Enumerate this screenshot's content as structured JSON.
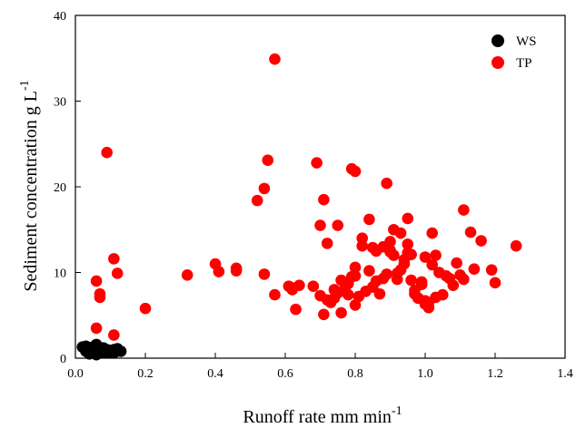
{
  "chart_data": {
    "type": "scatter",
    "xlabel": "Runoff rate mm min",
    "xlabel_superscript": "-1",
    "ylabel": "Sediment concentration g L",
    "ylabel_superscript": "-1",
    "xlim": [
      0.0,
      1.4
    ],
    "ylim": [
      0,
      40
    ],
    "x_ticks": [
      "0.0",
      "0.2",
      "0.4",
      "0.6",
      "0.8",
      "1.0",
      "1.2",
      "1.4"
    ],
    "y_ticks": [
      "0",
      "10",
      "20",
      "30",
      "40"
    ],
    "grid": false,
    "legend_position": "top-right",
    "series": [
      {
        "name": "WS",
        "color": "#000000",
        "x": [
          0.02,
          0.03,
          0.04,
          0.05,
          0.06,
          0.06,
          0.07,
          0.08,
          0.09,
          0.1,
          0.11,
          0.12,
          0.13,
          0.04,
          0.05,
          0.07,
          0.09,
          0.11,
          0.03,
          0.08,
          0.1,
          0.06,
          0.12
        ],
        "y": [
          1.3,
          0.8,
          1.1,
          0.9,
          1.6,
          1.0,
          1.2,
          0.7,
          1.0,
          0.9,
          0.6,
          1.1,
          0.8,
          0.5,
          1.3,
          0.9,
          0.6,
          1.0,
          1.4,
          1.2,
          0.7,
          0.4,
          1.0
        ]
      },
      {
        "name": "TP",
        "color": "#ff0000",
        "x": [
          0.09,
          0.57,
          0.55,
          0.69,
          0.79,
          0.8,
          0.89,
          0.71,
          0.54,
          0.52,
          1.11,
          0.06,
          0.07,
          0.07,
          0.11,
          0.12,
          0.11,
          0.06,
          0.2,
          0.32,
          0.4,
          0.41,
          0.46,
          0.46,
          0.54,
          0.57,
          0.61,
          0.62,
          0.62,
          0.64,
          0.63,
          0.7,
          0.71,
          0.72,
          0.73,
          0.74,
          0.75,
          0.76,
          0.77,
          0.78,
          0.79,
          0.8,
          0.8,
          0.81,
          0.82,
          0.83,
          0.84,
          0.85,
          0.85,
          0.86,
          0.87,
          0.88,
          0.89,
          0.9,
          0.91,
          0.92,
          0.93,
          0.94,
          0.95,
          0.95,
          0.96,
          0.97,
          0.98,
          0.99,
          1.0,
          1.0,
          1.01,
          1.02,
          1.03,
          1.04,
          1.05,
          1.07,
          1.08,
          1.09,
          1.1,
          1.11,
          1.13,
          1.14,
          1.16,
          1.19,
          1.2,
          1.26,
          0.68,
          0.7,
          0.75,
          0.72,
          0.74,
          0.8,
          0.82,
          0.86,
          0.88,
          0.9,
          0.92,
          0.94,
          0.96,
          0.98,
          1.0,
          1.01,
          1.02,
          0.93,
          0.97,
          0.99,
          1.03,
          0.84,
          0.78,
          0.76,
          0.9,
          0.95,
          1.06,
          0.91
        ],
        "y": [
          24.0,
          34.9,
          23.1,
          22.8,
          22.1,
          21.8,
          20.4,
          18.5,
          19.8,
          18.4,
          17.3,
          9.0,
          7.5,
          7.1,
          11.6,
          9.9,
          2.7,
          3.5,
          5.8,
          9.7,
          11.0,
          10.1,
          10.5,
          10.2,
          9.8,
          7.4,
          8.4,
          8.0,
          8.2,
          8.5,
          5.7,
          7.3,
          5.1,
          13.4,
          6.5,
          7.0,
          7.6,
          5.3,
          8.1,
          8.7,
          9.5,
          10.6,
          6.2,
          7.2,
          13.1,
          7.8,
          16.2,
          12.9,
          8.3,
          9.0,
          7.5,
          9.3,
          9.8,
          12.4,
          15.0,
          9.2,
          10.3,
          11.5,
          12.3,
          16.3,
          9.1,
          7.5,
          7.0,
          8.9,
          6.3,
          11.8,
          5.9,
          14.6,
          7.1,
          10.0,
          7.4,
          9.3,
          8.5,
          11.1,
          9.7,
          9.2,
          14.7,
          10.4,
          13.7,
          10.3,
          8.8,
          13.1,
          8.4,
          15.5,
          15.5,
          6.8,
          8.0,
          9.6,
          14.0,
          12.5,
          13.0,
          12.6,
          9.9,
          11.0,
          12.1,
          7.0,
          6.7,
          6.5,
          10.9,
          14.6,
          7.9,
          8.6,
          12.0,
          10.2,
          7.4,
          9.1,
          13.6,
          13.3,
          9.6,
          12.0
        ]
      }
    ]
  }
}
